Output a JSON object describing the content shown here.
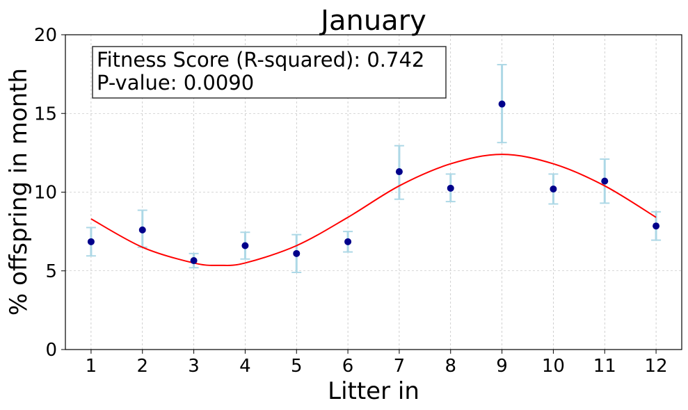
{
  "chart_data": {
    "type": "scatter",
    "title": "January",
    "xlabel": "Litter in",
    "ylabel": "% offspring in month",
    "xlim": [
      0.5,
      12.5
    ],
    "ylim": [
      0,
      20
    ],
    "xticks": [
      "1",
      "2",
      "3",
      "4",
      "5",
      "6",
      "7",
      "8",
      "9",
      "10",
      "11",
      "12"
    ],
    "yticks": [
      "0",
      "5",
      "10",
      "15",
      "20"
    ],
    "grid": true,
    "points": [
      {
        "x": 1,
        "y": 6.85,
        "err_low": 5.95,
        "err_high": 7.75
      },
      {
        "x": 2,
        "y": 7.6,
        "err_low": 6.5,
        "err_high": 8.85
      },
      {
        "x": 3,
        "y": 5.65,
        "err_low": 5.2,
        "err_high": 6.1
      },
      {
        "x": 4,
        "y": 6.6,
        "err_low": 5.75,
        "err_high": 7.45
      },
      {
        "x": 5,
        "y": 6.1,
        "err_low": 4.9,
        "err_high": 7.3
      },
      {
        "x": 6,
        "y": 6.85,
        "err_low": 6.2,
        "err_high": 7.5
      },
      {
        "x": 7,
        "y": 11.3,
        "err_low": 9.55,
        "err_high": 12.95
      },
      {
        "x": 8,
        "y": 10.25,
        "err_low": 9.4,
        "err_high": 11.15
      },
      {
        "x": 9,
        "y": 15.6,
        "err_low": 13.15,
        "err_high": 18.1
      },
      {
        "x": 10,
        "y": 10.2,
        "err_low": 9.25,
        "err_high": 11.15
      },
      {
        "x": 11,
        "y": 10.7,
        "err_low": 9.3,
        "err_high": 12.1
      },
      {
        "x": 12,
        "y": 7.85,
        "err_low": 6.95,
        "err_high": 8.75
      }
    ],
    "fit_curve": {
      "x": [
        1,
        2,
        3,
        3.5,
        4,
        5,
        6,
        7,
        8,
        9,
        10,
        11,
        12
      ],
      "y": [
        8.3,
        6.5,
        5.5,
        5.35,
        5.5,
        6.6,
        8.4,
        10.4,
        11.8,
        12.4,
        11.8,
        10.4,
        8.4
      ]
    },
    "annotation": {
      "line1": "Fitness Score (R-squared): 0.742",
      "line2": "P-value: 0.0090"
    },
    "colors": {
      "points": "#00008b",
      "errorbars": "#add8e6",
      "fit": "#ff0000",
      "grid": "#b0b0b0"
    }
  }
}
